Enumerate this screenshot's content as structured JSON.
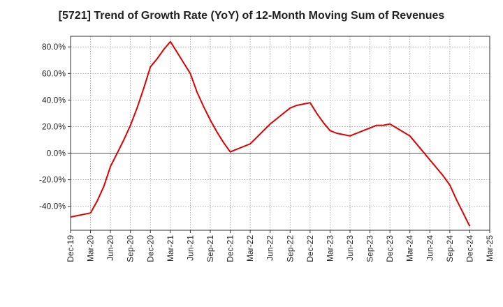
{
  "chart_data": {
    "type": "line",
    "title": "[5721]  Trend of Growth Rate (YoY) of 12-Month Moving Sum of Revenues",
    "xlabel": "",
    "ylabel": "",
    "x_ticks": [
      "Dec-19",
      "Mar-20",
      "Jun-20",
      "Sep-20",
      "Dec-20",
      "Mar-21",
      "Jun-21",
      "Sep-21",
      "Dec-21",
      "Mar-22",
      "Jun-22",
      "Sep-22",
      "Dec-22",
      "Mar-23",
      "Jun-23",
      "Sep-23",
      "Dec-23",
      "Mar-24",
      "Jun-24",
      "Sep-24",
      "Dec-24",
      "Mar-25"
    ],
    "y_ticks": [
      80,
      60,
      40,
      20,
      0,
      -20,
      -40
    ],
    "y_tick_suffix": "%",
    "ylim": [
      -58,
      88
    ],
    "grid": true,
    "series": [
      {
        "name": "",
        "color": "#e00000",
        "x": [
          "Dec-19",
          "Jan-20",
          "Feb-20",
          "Mar-20",
          "Apr-20",
          "May-20",
          "Jun-20",
          "Jul-20",
          "Aug-20",
          "Sep-20",
          "Oct-20",
          "Nov-20",
          "Dec-20",
          "Jan-21",
          "Feb-21",
          "Mar-21",
          "Apr-21",
          "May-21",
          "Jun-21",
          "Jul-21",
          "Aug-21",
          "Sep-21",
          "Oct-21",
          "Nov-21",
          "Dec-21",
          "Jan-22",
          "Feb-22",
          "Mar-22",
          "Apr-22",
          "May-22",
          "Jun-22",
          "Jul-22",
          "Aug-22",
          "Sep-22",
          "Oct-22",
          "Nov-22",
          "Dec-22",
          "Jan-23",
          "Feb-23",
          "Mar-23",
          "Apr-23",
          "May-23",
          "Jun-23",
          "Jul-23",
          "Aug-23",
          "Sep-23",
          "Oct-23",
          "Nov-23",
          "Dec-23",
          "Jan-24",
          "Feb-24",
          "Mar-24",
          "Apr-24",
          "May-24",
          "Jun-24",
          "Jul-24",
          "Aug-24",
          "Sep-24",
          "Oct-24",
          "Nov-24",
          "Dec-24"
        ],
        "values": [
          -48,
          -47,
          -46,
          -45,
          -36,
          -25,
          -10,
          0,
          10,
          21,
          34,
          49,
          65,
          71,
          78,
          84,
          76,
          68,
          60,
          46,
          35,
          25,
          16,
          8,
          1,
          3,
          5,
          7,
          12,
          17,
          22,
          26,
          30,
          34,
          36,
          37,
          38,
          30,
          23,
          17,
          15,
          14,
          13,
          15,
          17,
          19,
          21,
          21,
          22,
          19,
          16,
          13,
          7,
          1,
          -5,
          -11,
          -17,
          -24,
          -35,
          -45,
          -55
        ]
      }
    ]
  }
}
